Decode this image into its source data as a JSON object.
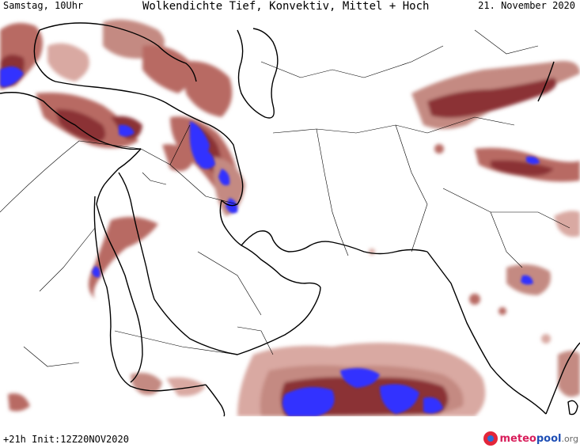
{
  "header": {
    "left": "Samstag, 10Uhr",
    "center": "Wolkendichte  Tief, Konvektiv, Mittel + Hoch",
    "right": "21. November 2020"
  },
  "footer": {
    "init": "+21h Init:12Z20NOV2020"
  },
  "logo": {
    "part1": "meteo",
    "part2": "pool",
    "part3": ".org"
  },
  "colors": {
    "cloud_light": "#d9a9a2",
    "cloud_medium": "#b86a64",
    "cloud_dense": "#8b3036",
    "cloud_max": "#3030ff",
    "border": "#000000"
  }
}
